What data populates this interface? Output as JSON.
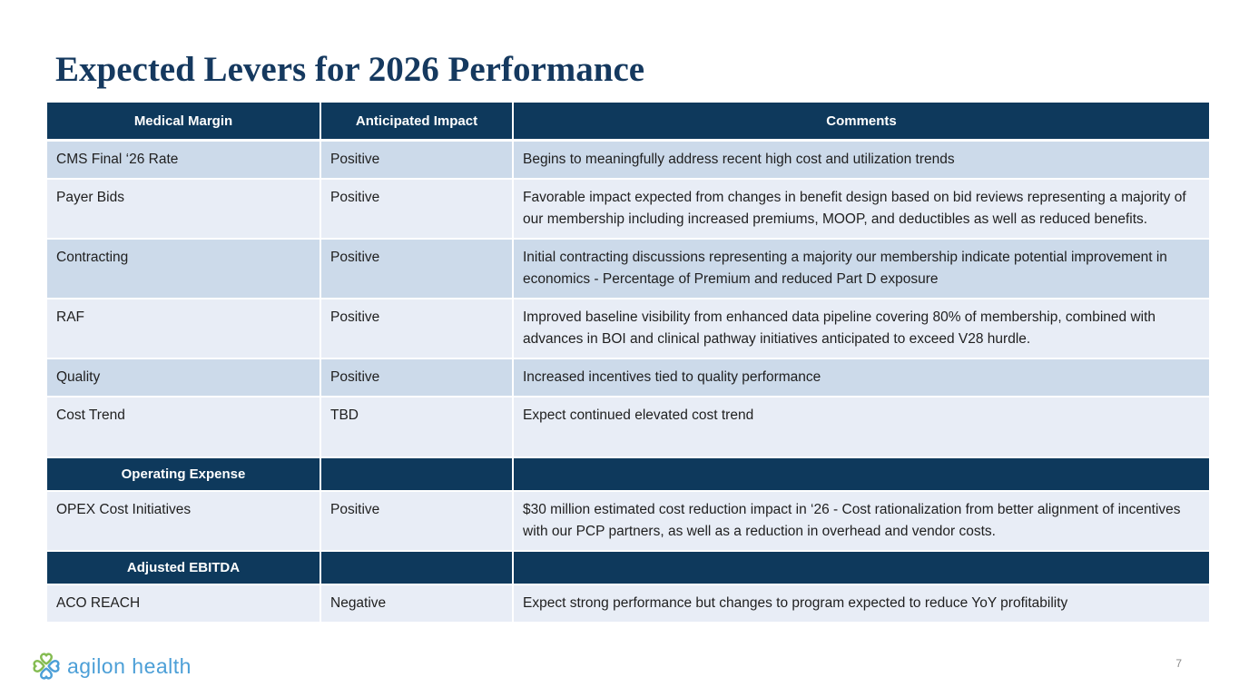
{
  "slide": {
    "title": "Expected Levers for 2026 Performance",
    "page_number": "7",
    "logo": {
      "text": "agilon health",
      "icon": "clover-hearts-icon"
    }
  },
  "colors": {
    "navy": "#0e395c",
    "title": "#15395f",
    "row_dark": "#ccdaea",
    "row_light": "#e8edf6",
    "logo_blue": "#4c9fd7",
    "logo_green": "#85bc52",
    "page_gray": "#8a8a8a"
  },
  "table": {
    "columns": [
      "Medical Margin",
      "Anticipated Impact",
      "Comments"
    ],
    "rows": [
      {
        "type": "data",
        "lever": "CMS Final ‘26 Rate",
        "impact": "Positive",
        "comment": "Begins to meaningfully address recent high cost and utilization trends"
      },
      {
        "type": "data",
        "lever": "Payer Bids",
        "impact": "Positive",
        "comment": "Favorable impact expected from changes in benefit design based on bid reviews representing a majority of our membership including increased premiums, MOOP, and deductibles as well as reduced benefits."
      },
      {
        "type": "data",
        "lever": "Contracting",
        "impact": "Positive",
        "comment": "Initial contracting discussions representing a majority our membership indicate potential improvement in economics - Percentage of Premium and reduced Part D exposure"
      },
      {
        "type": "data",
        "lever": "RAF",
        "impact": "Positive",
        "comment": "Improved baseline visibility from enhanced data pipeline covering 80% of membership, combined with advances in BOI and clinical pathway initiatives anticipated to exceed V28 hurdle."
      },
      {
        "type": "data",
        "lever": "Quality",
        "impact": "Positive",
        "comment": "Increased incentives tied to quality performance"
      },
      {
        "type": "data",
        "lever": "Cost Trend",
        "impact": "TBD",
        "comment": "Expect continued elevated cost trend"
      },
      {
        "type": "section",
        "label": "Operating Expense"
      },
      {
        "type": "data",
        "lever": "OPEX Cost Initiatives",
        "impact": "Positive",
        "comment": "$30 million estimated cost reduction impact in ‘26 - Cost rationalization from better alignment of incentives with our PCP partners, as well as a reduction in overhead and vendor costs."
      },
      {
        "type": "section",
        "label": "Adjusted EBITDA"
      },
      {
        "type": "data",
        "lever": "ACO REACH",
        "impact": "Negative",
        "comment": "Expect strong performance but changes to program expected to reduce YoY profitability"
      }
    ]
  }
}
